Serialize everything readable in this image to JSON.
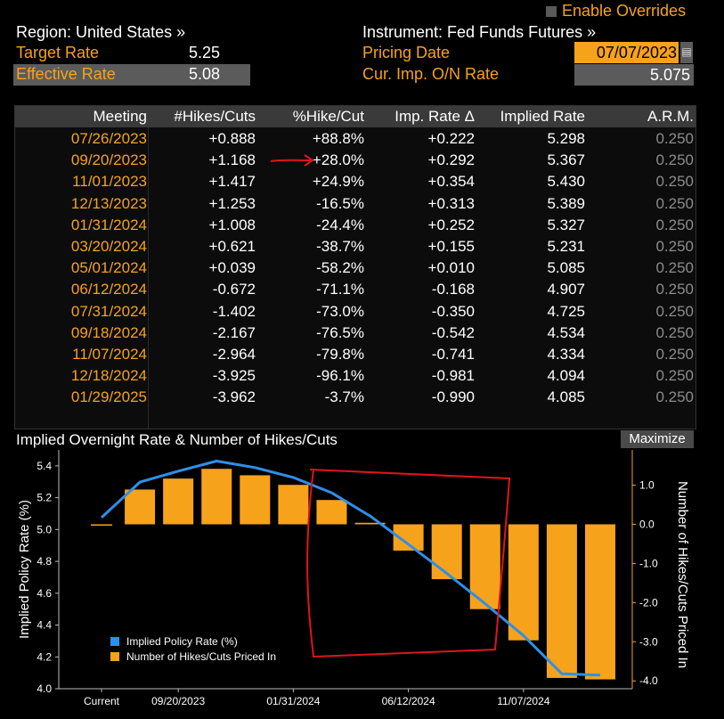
{
  "header": {
    "region": "Region: United States »",
    "instrument": "Instrument: Fed Funds Futures »",
    "enable_overrides": "Enable Overrides",
    "target_rate_label": "Target Rate",
    "target_rate_value": "5.25",
    "effective_rate_label": "Effective Rate",
    "effective_rate_value": "5.08",
    "pricing_date_label": "Pricing Date",
    "pricing_date_value": "07/07/2023",
    "cur_imp_label": "Cur. Imp. O/N Rate",
    "cur_imp_value": "5.075"
  },
  "table": {
    "columns": [
      "Meeting",
      "#Hikes/Cuts",
      "%Hike/Cut",
      "Imp. Rate Δ",
      "Implied Rate",
      "A.R.M."
    ],
    "rows": [
      [
        "07/26/2023",
        "+0.888",
        "+88.8%",
        "+0.222",
        "5.298",
        "0.250"
      ],
      [
        "09/20/2023",
        "+1.168",
        "+28.0%",
        "+0.292",
        "5.367",
        "0.250"
      ],
      [
        "11/01/2023",
        "+1.417",
        "+24.9%",
        "+0.354",
        "5.430",
        "0.250"
      ],
      [
        "12/13/2023",
        "+1.253",
        "-16.5%",
        "+0.313",
        "5.389",
        "0.250"
      ],
      [
        "01/31/2024",
        "+1.008",
        "-24.4%",
        "+0.252",
        "5.327",
        "0.250"
      ],
      [
        "03/20/2024",
        "+0.621",
        "-38.7%",
        "+0.155",
        "5.231",
        "0.250"
      ],
      [
        "05/01/2024",
        "+0.039",
        "-58.2%",
        "+0.010",
        "5.085",
        "0.250"
      ],
      [
        "06/12/2024",
        "-0.672",
        "-71.1%",
        "-0.168",
        "4.907",
        "0.250"
      ],
      [
        "07/31/2024",
        "-1.402",
        "-73.0%",
        "-0.350",
        "4.725",
        "0.250"
      ],
      [
        "09/18/2024",
        "-2.167",
        "-76.5%",
        "-0.542",
        "4.534",
        "0.250"
      ],
      [
        "11/07/2024",
        "-2.964",
        "-79.8%",
        "-0.741",
        "4.334",
        "0.250"
      ],
      [
        "12/18/2024",
        "-3.925",
        "-96.1%",
        "-0.981",
        "4.094",
        "0.250"
      ],
      [
        "01/29/2025",
        "-3.962",
        "-3.7%",
        "-0.990",
        "4.085",
        "0.250"
      ]
    ]
  },
  "chart": {
    "title": "Implied Overnight Rate & Number of Hikes/Cuts",
    "maximize_label": "Maximize",
    "legend_rate": "Implied Policy Rate (%)",
    "legend_hikes": "Number of Hikes/Cuts Priced In"
  },
  "chart_data": {
    "type": "bar",
    "title": "Implied Overnight Rate & Number of Hikes/Cuts",
    "x_tick_labels": [
      "Current",
      "09/20/2023",
      "01/31/2024",
      "06/12/2024",
      "11/07/2024"
    ],
    "categories": [
      "Current",
      "07/26/2023",
      "09/20/2023",
      "11/01/2023",
      "12/13/2023",
      "01/31/2024",
      "03/20/2024",
      "05/01/2024",
      "06/12/2024",
      "07/31/2024",
      "09/18/2024",
      "11/07/2024",
      "12/18/2024",
      "01/29/2025"
    ],
    "ylabel_left": "Implied Policy Rate (%)",
    "ylabel_right": "Number of Hikes/Cuts Priced In",
    "ylim_left": [
      4.0,
      5.5
    ],
    "ylim_right": [
      -4.2,
      1.9
    ],
    "yticks_left": [
      "4.0",
      "4.2",
      "4.4",
      "4.6",
      "4.8",
      "5.0",
      "5.2",
      "5.4"
    ],
    "yticks_right": [
      "1.0",
      "0.0",
      "-1.0",
      "-2.0",
      "-3.0",
      "-4.0"
    ],
    "series": [
      {
        "name": "Implied Policy Rate (%)",
        "type": "line",
        "axis": "left",
        "color": "#2f8fe8",
        "values": [
          5.075,
          5.298,
          5.367,
          5.43,
          5.389,
          5.327,
          5.231,
          5.085,
          4.907,
          4.725,
          4.534,
          4.334,
          4.094,
          4.085
        ]
      },
      {
        "name": "Number of Hikes/Cuts Priced In",
        "type": "bar",
        "axis": "right",
        "color": "#f7a21b",
        "values": [
          0.0,
          0.888,
          1.168,
          1.417,
          1.253,
          1.008,
          0.621,
          0.039,
          -0.672,
          -1.402,
          -2.167,
          -2.964,
          -3.925,
          -3.962
        ]
      }
    ],
    "legend": "bottom-left",
    "grid": false
  },
  "colors": {
    "accent_orange": "#f7a21b",
    "line_blue": "#2f8fe8",
    "annotation_red": "#e0141e"
  }
}
